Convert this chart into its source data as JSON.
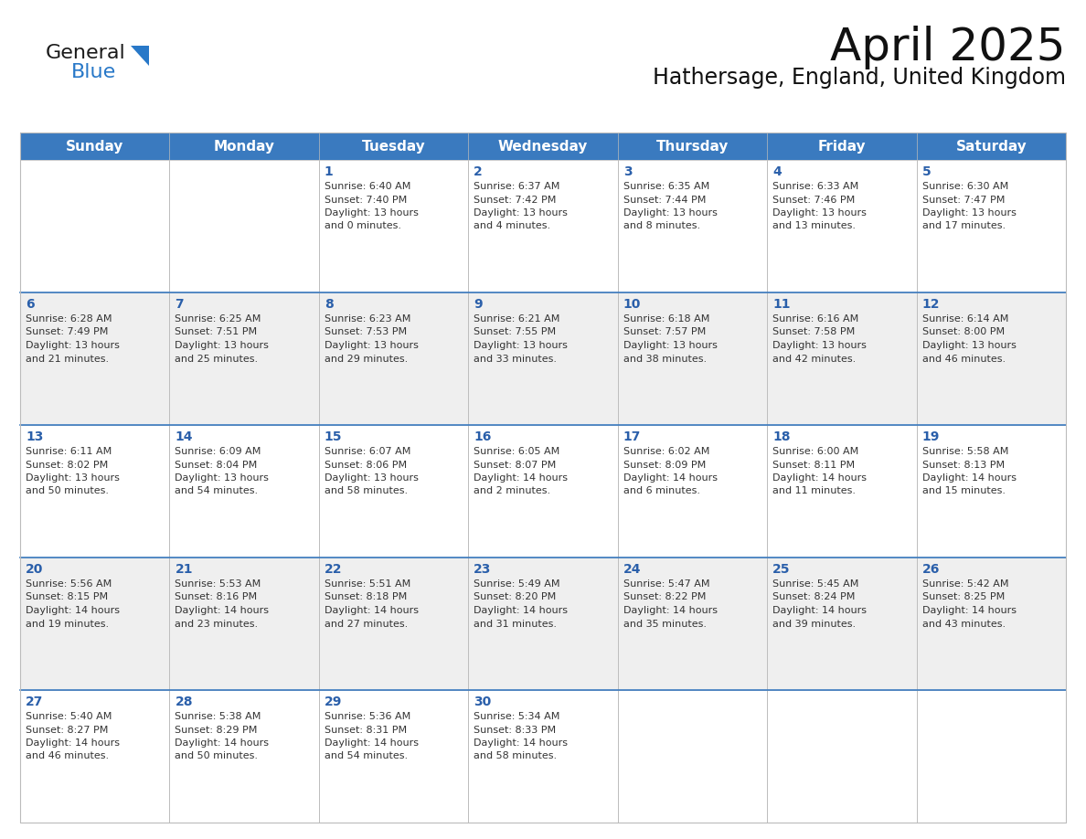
{
  "title": "April 2025",
  "subtitle": "Hathersage, England, United Kingdom",
  "header_color": "#3a7abf",
  "header_text_color": "#ffffff",
  "row_colors": [
    "#ffffff",
    "#efefef"
  ],
  "day_number_color": "#2a5faa",
  "text_color": "#333333",
  "border_color": "#bbbbbb",
  "grid_line_color": "#3a7abf",
  "days_of_week": [
    "Sunday",
    "Monday",
    "Tuesday",
    "Wednesday",
    "Thursday",
    "Friday",
    "Saturday"
  ],
  "weeks": [
    [
      {
        "day": "",
        "lines": []
      },
      {
        "day": "",
        "lines": []
      },
      {
        "day": "1",
        "lines": [
          "Sunrise: 6:40 AM",
          "Sunset: 7:40 PM",
          "Daylight: 13 hours",
          "and 0 minutes."
        ]
      },
      {
        "day": "2",
        "lines": [
          "Sunrise: 6:37 AM",
          "Sunset: 7:42 PM",
          "Daylight: 13 hours",
          "and 4 minutes."
        ]
      },
      {
        "day": "3",
        "lines": [
          "Sunrise: 6:35 AM",
          "Sunset: 7:44 PM",
          "Daylight: 13 hours",
          "and 8 minutes."
        ]
      },
      {
        "day": "4",
        "lines": [
          "Sunrise: 6:33 AM",
          "Sunset: 7:46 PM",
          "Daylight: 13 hours",
          "and 13 minutes."
        ]
      },
      {
        "day": "5",
        "lines": [
          "Sunrise: 6:30 AM",
          "Sunset: 7:47 PM",
          "Daylight: 13 hours",
          "and 17 minutes."
        ]
      }
    ],
    [
      {
        "day": "6",
        "lines": [
          "Sunrise: 6:28 AM",
          "Sunset: 7:49 PM",
          "Daylight: 13 hours",
          "and 21 minutes."
        ]
      },
      {
        "day": "7",
        "lines": [
          "Sunrise: 6:25 AM",
          "Sunset: 7:51 PM",
          "Daylight: 13 hours",
          "and 25 minutes."
        ]
      },
      {
        "day": "8",
        "lines": [
          "Sunrise: 6:23 AM",
          "Sunset: 7:53 PM",
          "Daylight: 13 hours",
          "and 29 minutes."
        ]
      },
      {
        "day": "9",
        "lines": [
          "Sunrise: 6:21 AM",
          "Sunset: 7:55 PM",
          "Daylight: 13 hours",
          "and 33 minutes."
        ]
      },
      {
        "day": "10",
        "lines": [
          "Sunrise: 6:18 AM",
          "Sunset: 7:57 PM",
          "Daylight: 13 hours",
          "and 38 minutes."
        ]
      },
      {
        "day": "11",
        "lines": [
          "Sunrise: 6:16 AM",
          "Sunset: 7:58 PM",
          "Daylight: 13 hours",
          "and 42 minutes."
        ]
      },
      {
        "day": "12",
        "lines": [
          "Sunrise: 6:14 AM",
          "Sunset: 8:00 PM",
          "Daylight: 13 hours",
          "and 46 minutes."
        ]
      }
    ],
    [
      {
        "day": "13",
        "lines": [
          "Sunrise: 6:11 AM",
          "Sunset: 8:02 PM",
          "Daylight: 13 hours",
          "and 50 minutes."
        ]
      },
      {
        "day": "14",
        "lines": [
          "Sunrise: 6:09 AM",
          "Sunset: 8:04 PM",
          "Daylight: 13 hours",
          "and 54 minutes."
        ]
      },
      {
        "day": "15",
        "lines": [
          "Sunrise: 6:07 AM",
          "Sunset: 8:06 PM",
          "Daylight: 13 hours",
          "and 58 minutes."
        ]
      },
      {
        "day": "16",
        "lines": [
          "Sunrise: 6:05 AM",
          "Sunset: 8:07 PM",
          "Daylight: 14 hours",
          "and 2 minutes."
        ]
      },
      {
        "day": "17",
        "lines": [
          "Sunrise: 6:02 AM",
          "Sunset: 8:09 PM",
          "Daylight: 14 hours",
          "and 6 minutes."
        ]
      },
      {
        "day": "18",
        "lines": [
          "Sunrise: 6:00 AM",
          "Sunset: 8:11 PM",
          "Daylight: 14 hours",
          "and 11 minutes."
        ]
      },
      {
        "day": "19",
        "lines": [
          "Sunrise: 5:58 AM",
          "Sunset: 8:13 PM",
          "Daylight: 14 hours",
          "and 15 minutes."
        ]
      }
    ],
    [
      {
        "day": "20",
        "lines": [
          "Sunrise: 5:56 AM",
          "Sunset: 8:15 PM",
          "Daylight: 14 hours",
          "and 19 minutes."
        ]
      },
      {
        "day": "21",
        "lines": [
          "Sunrise: 5:53 AM",
          "Sunset: 8:16 PM",
          "Daylight: 14 hours",
          "and 23 minutes."
        ]
      },
      {
        "day": "22",
        "lines": [
          "Sunrise: 5:51 AM",
          "Sunset: 8:18 PM",
          "Daylight: 14 hours",
          "and 27 minutes."
        ]
      },
      {
        "day": "23",
        "lines": [
          "Sunrise: 5:49 AM",
          "Sunset: 8:20 PM",
          "Daylight: 14 hours",
          "and 31 minutes."
        ]
      },
      {
        "day": "24",
        "lines": [
          "Sunrise: 5:47 AM",
          "Sunset: 8:22 PM",
          "Daylight: 14 hours",
          "and 35 minutes."
        ]
      },
      {
        "day": "25",
        "lines": [
          "Sunrise: 5:45 AM",
          "Sunset: 8:24 PM",
          "Daylight: 14 hours",
          "and 39 minutes."
        ]
      },
      {
        "day": "26",
        "lines": [
          "Sunrise: 5:42 AM",
          "Sunset: 8:25 PM",
          "Daylight: 14 hours",
          "and 43 minutes."
        ]
      }
    ],
    [
      {
        "day": "27",
        "lines": [
          "Sunrise: 5:40 AM",
          "Sunset: 8:27 PM",
          "Daylight: 14 hours",
          "and 46 minutes."
        ]
      },
      {
        "day": "28",
        "lines": [
          "Sunrise: 5:38 AM",
          "Sunset: 8:29 PM",
          "Daylight: 14 hours",
          "and 50 minutes."
        ]
      },
      {
        "day": "29",
        "lines": [
          "Sunrise: 5:36 AM",
          "Sunset: 8:31 PM",
          "Daylight: 14 hours",
          "and 54 minutes."
        ]
      },
      {
        "day": "30",
        "lines": [
          "Sunrise: 5:34 AM",
          "Sunset: 8:33 PM",
          "Daylight: 14 hours",
          "and 58 minutes."
        ]
      },
      {
        "day": "",
        "lines": []
      },
      {
        "day": "",
        "lines": []
      },
      {
        "day": "",
        "lines": []
      }
    ]
  ],
  "logo_general_color": "#1a1a1a",
  "logo_blue_color": "#2878c8",
  "logo_triangle_color": "#2878c8",
  "title_fontsize": 36,
  "subtitle_fontsize": 17,
  "header_fontsize": 11,
  "day_num_fontsize": 10,
  "cell_text_fontsize": 8
}
